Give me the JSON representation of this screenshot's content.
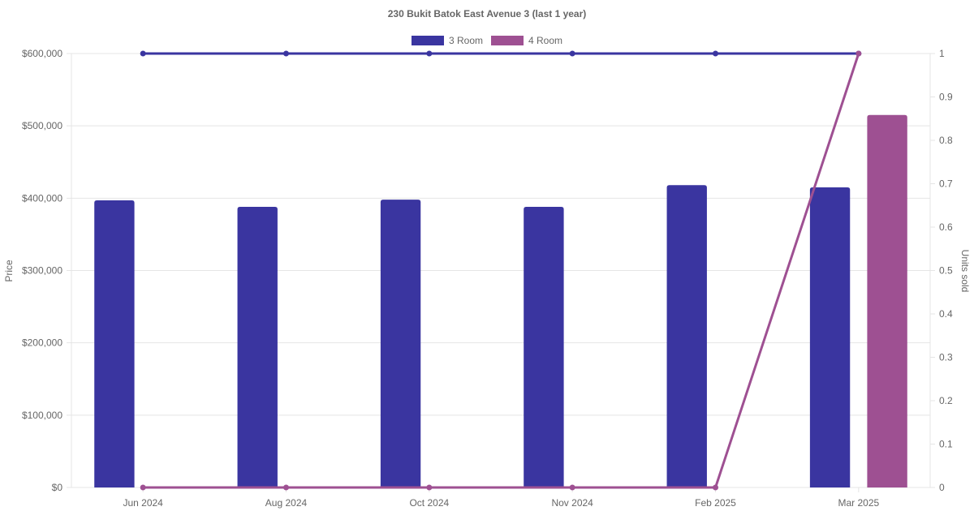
{
  "chart_data": {
    "type": "bar",
    "title": "230 Bukit Batok East Avenue 3 (last 1 year)",
    "categories": [
      "Jun 2024",
      "Aug 2024",
      "Oct 2024",
      "Nov 2024",
      "Feb 2025",
      "Mar 2025"
    ],
    "ylabel": "Price",
    "y2label": "Units sold",
    "ylim": [
      0,
      600000
    ],
    "y2lim": [
      0,
      1
    ],
    "yticks": [
      "$0",
      "$100,000",
      "$200,000",
      "$300,000",
      "$400,000",
      "$500,000",
      "$600,000"
    ],
    "y2ticks": [
      "0",
      "0.1",
      "0.2",
      "0.3",
      "0.4",
      "0.5",
      "0.6",
      "0.7",
      "0.8",
      "0.9",
      "1"
    ],
    "grid": true,
    "legend_position": "top",
    "series": [
      {
        "name": "3 Room",
        "type": "bar",
        "axis": "price",
        "color": "#3a35a0",
        "values": [
          397000,
          388000,
          398000,
          388000,
          418000,
          415000
        ]
      },
      {
        "name": "4 Room",
        "type": "bar",
        "axis": "price",
        "color": "#9e5092",
        "values": [
          null,
          null,
          null,
          null,
          null,
          515000
        ]
      },
      {
        "name": "3 Room",
        "type": "line",
        "axis": "units",
        "color": "#3a35a0",
        "values": [
          1,
          1,
          1,
          1,
          1,
          1
        ]
      },
      {
        "name": "4 Room",
        "type": "line",
        "axis": "units",
        "color": "#9e5092",
        "values": [
          0,
          0,
          0,
          0,
          0,
          1
        ]
      }
    ],
    "legend": [
      {
        "label": "3 Room",
        "color": "#3a35a0"
      },
      {
        "label": "4 Room",
        "color": "#9e5092"
      }
    ]
  }
}
